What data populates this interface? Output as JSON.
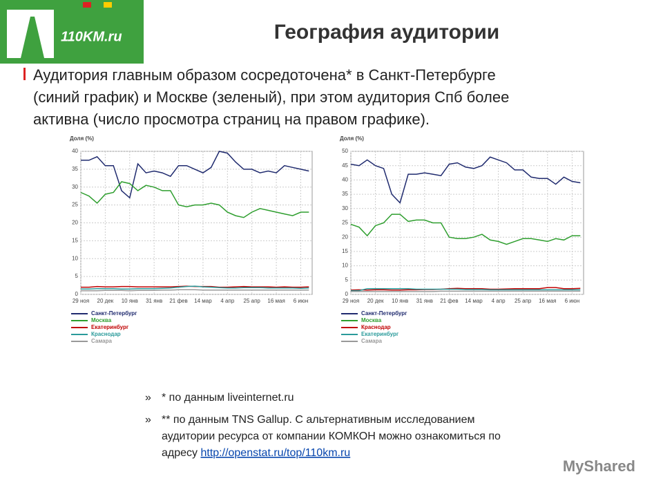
{
  "logo": "110KM.ru",
  "title": "География аудитории",
  "paragraph": [
    "Аудитория главным образом сосредоточена* в Санкт-Петербурге",
    "(синий график) и Москве (зеленый), при этом аудитория Спб более",
    "активна (число просмотра страниц на правом графике)."
  ],
  "footnotes": [
    {
      "marker": "»",
      "lines": [
        "* по данным liveinternet.ru"
      ]
    },
    {
      "marker": "»",
      "lines": [
        "** по данным TNS Gallup. С альтернативным исследованием",
        "аудитории ресурса от компании КОМКОН можно ознакомиться по"
      ],
      "last": "адресу ",
      "link": "http://openstat.ru/top/110km.ru"
    }
  ],
  "watermark": "MyShared",
  "chart_data": [
    {
      "type": "line",
      "ylabel": "Доля (%)",
      "ylim": [
        0,
        40
      ],
      "yticks": [
        0,
        5,
        10,
        15,
        20,
        25,
        30,
        35,
        40
      ],
      "grid": true,
      "categories": [
        "29 ноя",
        null,
        null,
        "20 дек",
        null,
        null,
        "10 янв",
        null,
        null,
        "31 янв",
        null,
        null,
        "21 фев",
        null,
        null,
        "14 мар",
        null,
        null,
        "4 апр",
        null,
        null,
        "25 апр",
        null,
        null,
        "16 мая",
        null,
        null,
        "6 июн",
        null
      ],
      "series": [
        {
          "name": "Санкт-Петербург",
          "color": "#1f2a6e",
          "values": [
            37.5,
            37.5,
            38.5,
            36,
            36,
            29,
            27,
            36.5,
            34,
            34.5,
            34,
            33,
            36,
            36,
            35,
            34,
            35.5,
            40,
            39.5,
            37,
            35,
            35,
            34,
            34.5,
            34,
            36,
            35.5,
            35,
            34.5
          ]
        },
        {
          "name": "Москва",
          "color": "#2e9e2e",
          "values": [
            28.5,
            27.5,
            25.5,
            28,
            28.5,
            31.5,
            31,
            29,
            30.5,
            30,
            29,
            29,
            25,
            24.5,
            25,
            25,
            25.5,
            25,
            23,
            22,
            21.5,
            23,
            24,
            23.5,
            23,
            22.5,
            22,
            23,
            23
          ]
        },
        {
          "name": "Екатеринбург",
          "color": "#c00000",
          "values": [
            2,
            2,
            2.2,
            2.1,
            2.1,
            2.2,
            2.2,
            2.1,
            2.1,
            2.1,
            2.1,
            2.1,
            2.2,
            2.3,
            2.2,
            2.2,
            2.2,
            2,
            2,
            2.1,
            2.2,
            2.1,
            2.1,
            2.1,
            2,
            2.1,
            2,
            2,
            2.1
          ]
        },
        {
          "name": "Краснодар",
          "color": "#2a9a9a",
          "values": [
            1.5,
            1.5,
            1.6,
            1.6,
            1.6,
            1.5,
            1.5,
            1.6,
            1.6,
            1.6,
            1.7,
            1.8,
            2,
            2.2,
            2.3,
            2.1,
            2,
            1.9,
            1.8,
            1.8,
            1.9,
            1.9,
            1.9,
            1.8,
            1.8,
            1.8,
            1.8,
            1.7,
            1.8
          ]
        },
        {
          "name": "Самара",
          "color": "#999999",
          "values": [
            1,
            1,
            1,
            1.1,
            1.1,
            1.1,
            1,
            1.1,
            1.1,
            1.1,
            1.2,
            1.2,
            1.3,
            1.3,
            1.3,
            1.2,
            1.2,
            1.2,
            1.2,
            1.2,
            1.2,
            1.2,
            1.2,
            1.2,
            1.2,
            1.2,
            1.2,
            1.2,
            1.2
          ]
        }
      ]
    },
    {
      "type": "line",
      "ylabel": "Доля (%)",
      "ylim": [
        0,
        50
      ],
      "yticks": [
        0,
        5,
        10,
        15,
        20,
        25,
        30,
        35,
        40,
        45,
        50
      ],
      "grid": true,
      "categories": [
        "29 ноя",
        null,
        null,
        "20 дек",
        null,
        null,
        "10 янв",
        null,
        null,
        "31 янв",
        null,
        null,
        "21 фев",
        null,
        null,
        "14 мар",
        null,
        null,
        "4 апр",
        null,
        null,
        "25 апр",
        null,
        null,
        "16 мая",
        null,
        null,
        "6 июн",
        null
      ],
      "series": [
        {
          "name": "Санкт-Петербург",
          "color": "#1f2a6e",
          "values": [
            45.5,
            45,
            47,
            45,
            44,
            35,
            32,
            42,
            42,
            42.5,
            42,
            41.5,
            45.5,
            46,
            44.5,
            44,
            45,
            48,
            47,
            46,
            43.5,
            43.5,
            41,
            40.5,
            40.5,
            38.5,
            41,
            39.5,
            39
          ]
        },
        {
          "name": "Москва",
          "color": "#2e9e2e",
          "values": [
            24.5,
            23.5,
            20.5,
            24,
            25,
            28,
            28,
            25.5,
            26,
            26,
            25,
            25,
            20,
            19.5,
            19.5,
            20,
            21,
            19,
            18.5,
            17.5,
            18.5,
            19.5,
            19.5,
            19,
            18.5,
            19.5,
            19,
            20.5,
            20.5
          ]
        },
        {
          "name": "Краснодар",
          "color": "#c00000",
          "values": [
            1.5,
            1.6,
            1.5,
            1.6,
            1.6,
            1.5,
            1.5,
            1.6,
            1.6,
            1.7,
            1.7,
            1.8,
            2,
            2.1,
            2,
            2,
            2,
            1.8,
            1.8,
            1.9,
            2,
            2,
            2,
            2,
            2.4,
            2.4,
            2,
            2,
            2.1
          ]
        },
        {
          "name": "Екатеринбург",
          "color": "#2a9a9a",
          "values": [
            1.3,
            1.3,
            2,
            2,
            2,
            2,
            2,
            2,
            1.8,
            1.8,
            1.8,
            1.8,
            1.8,
            1.8,
            1.7,
            1.7,
            1.7,
            1.6,
            1.6,
            1.6,
            1.6,
            1.6,
            1.6,
            1.6,
            1.6,
            1.6,
            1.6,
            1.6,
            1.6
          ]
        },
        {
          "name": "Самара",
          "color": "#999999",
          "values": [
            1,
            1,
            1,
            1,
            1,
            1,
            1,
            1,
            1,
            1,
            1,
            1.1,
            1.1,
            1.1,
            1.1,
            1.1,
            1.1,
            1.1,
            1.1,
            1.1,
            1.1,
            1.1,
            1.1,
            1.1,
            1.1,
            1.1,
            1.1,
            1.1,
            1.1
          ]
        }
      ]
    }
  ]
}
